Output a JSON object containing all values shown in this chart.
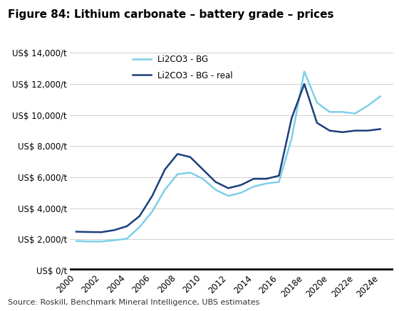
{
  "title": "Figure 84: Lithium carbonate – battery grade – prices",
  "source": "Source: Roskill, Benchmark Mineral Intelligence, UBS estimates",
  "x_tick_positions": [
    2000,
    2002,
    2004,
    2006,
    2008,
    2010,
    2012,
    2014,
    2016,
    2018,
    2020,
    2022,
    2024
  ],
  "x_tick_labels": [
    "2000",
    "2002",
    "2004",
    "2006",
    "2008",
    "2010",
    "2012",
    "2014",
    "2016",
    "2018e",
    "2020e",
    "2022e",
    "2024e"
  ],
  "series_bg": {
    "label": "Li2CO3 - BG",
    "color": "#7ecfe8",
    "linewidth": 1.8,
    "x": [
      2000,
      2001,
      2002,
      2003,
      2004,
      2005,
      2006,
      2007,
      2008,
      2009,
      2010,
      2011,
      2012,
      2013,
      2014,
      2015,
      2016,
      2017,
      2018,
      2019,
      2020,
      2021,
      2022,
      2023,
      2024
    ],
    "y": [
      1900,
      1870,
      1870,
      1950,
      2050,
      2800,
      3800,
      5200,
      6200,
      6300,
      5900,
      5200,
      4800,
      5000,
      5400,
      5600,
      5700,
      8500,
      12800,
      10800,
      10200,
      10200,
      10100,
      10600,
      11200
    ]
  },
  "series_real": {
    "label": "Li2CO3 - BG - real",
    "color": "#1a3f7a",
    "linewidth": 1.8,
    "x": [
      2000,
      2001,
      2002,
      2003,
      2004,
      2005,
      2006,
      2007,
      2008,
      2009,
      2010,
      2011,
      2012,
      2013,
      2014,
      2015,
      2016,
      2017,
      2018,
      2019,
      2020,
      2021,
      2022,
      2023,
      2024
    ],
    "y": [
      2500,
      2480,
      2470,
      2600,
      2850,
      3500,
      4800,
      6500,
      7500,
      7300,
      6500,
      5700,
      5300,
      5500,
      5900,
      5900,
      6100,
      9800,
      12000,
      9500,
      9000,
      8900,
      9000,
      9000,
      9100
    ]
  },
  "ylim": [
    0,
    14000
  ],
  "xlim": [
    1999.5,
    2025
  ],
  "yticks": [
    0,
    2000,
    4000,
    6000,
    8000,
    10000,
    12000,
    14000
  ],
  "ytick_labels": [
    "US$ 0/t",
    "US$ 2,000/t",
    "US$ 4,000/t",
    "US$ 6,000/t",
    "US$ 8,000/t",
    "US$ 10,000/t",
    "US$ 12,000/t",
    "US$ 14,000/t"
  ],
  "background_color": "#ffffff",
  "grid_color": "#c8c8c8",
  "title_fontsize": 11,
  "axis_fontsize": 8.5,
  "source_fontsize": 8,
  "baseline_color": "#000000",
  "baseline_linewidth": 4.0
}
